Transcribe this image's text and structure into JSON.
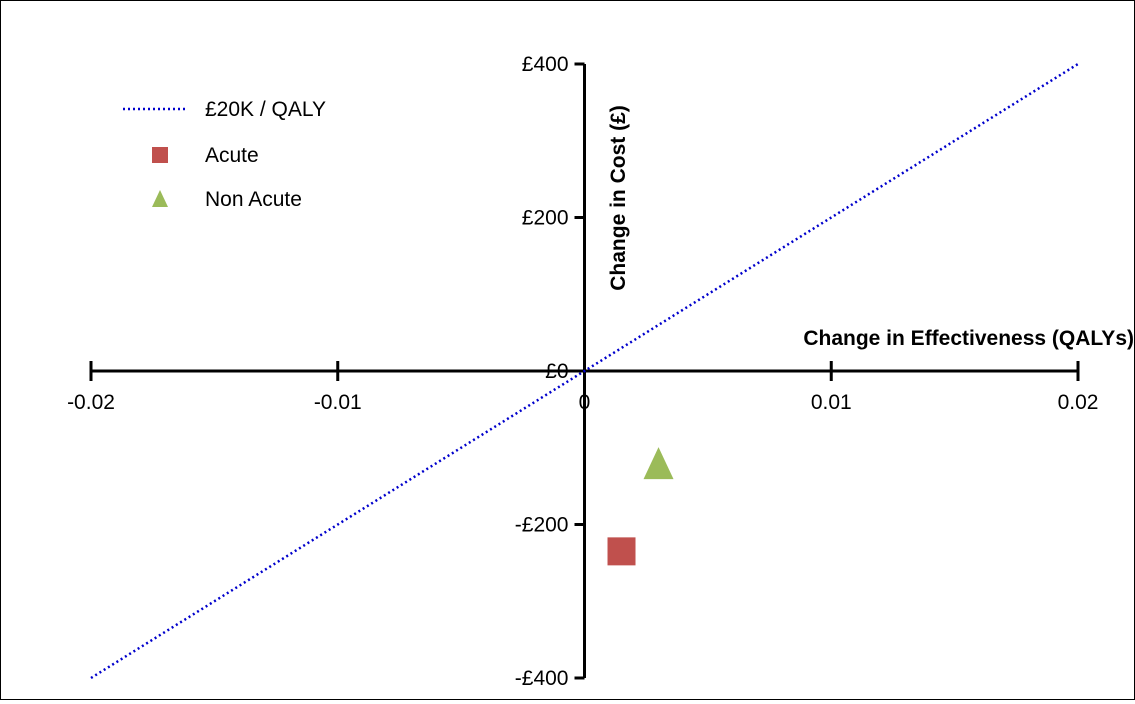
{
  "chart_data": {
    "type": "scatter",
    "title": "",
    "xlabel": "Change in Effectiveness (QALYs)",
    "ylabel": "Change in Cost (£)",
    "xlim": [
      -0.02,
      0.02
    ],
    "ylim": [
      -400,
      400
    ],
    "x_ticks": [
      -0.02,
      -0.01,
      0,
      0.01,
      0.02
    ],
    "x_tick_labels": [
      "-0.02",
      "-0.01",
      "0",
      "0.01",
      "0.02"
    ],
    "y_ticks": [
      -400,
      -200,
      0,
      200,
      400
    ],
    "y_tick_labels": [
      "-£400",
      "-£200",
      "£0",
      "£200",
      "£400"
    ],
    "grid": false,
    "legend_position": "top-left",
    "threshold_line": {
      "name": "£20K / QALY",
      "slope": 20000,
      "x": [
        -0.02,
        0.02
      ],
      "y": [
        -400,
        400
      ],
      "color": "#0000cc",
      "style": "dotted"
    },
    "series": [
      {
        "name": "Acute",
        "marker": "square",
        "color": "#c0504d",
        "points": [
          {
            "x": 0.0015,
            "y": -235
          }
        ]
      },
      {
        "name": "Non Acute",
        "marker": "triangle",
        "color": "#9bbb59",
        "points": [
          {
            "x": 0.003,
            "y": -120
          }
        ]
      }
    ]
  }
}
